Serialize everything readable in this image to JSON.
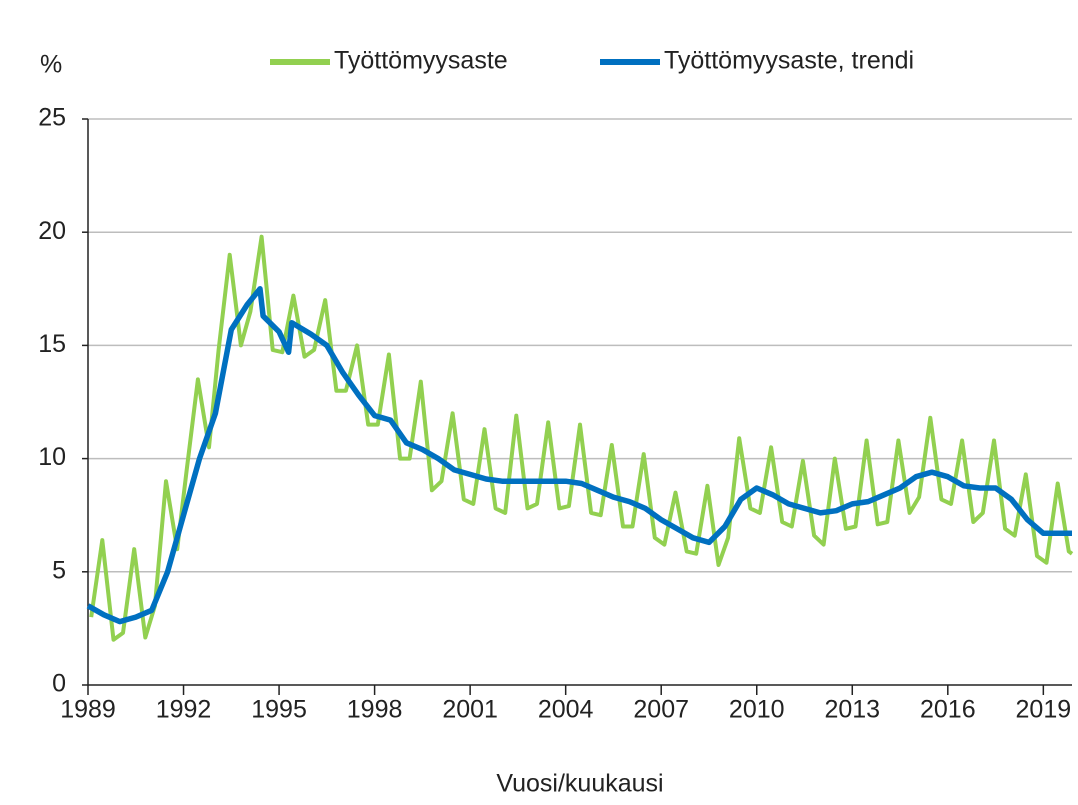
{
  "chart_data": {
    "type": "line",
    "y_unit": "%",
    "xlabel": "Vuosi/kuukausi",
    "xlim": [
      1989,
      2019.9
    ],
    "xticks": [
      1989,
      1992,
      1995,
      1998,
      2001,
      2004,
      2007,
      2010,
      2013,
      2016,
      2019
    ],
    "ylim": [
      0,
      25
    ],
    "yticks": [
      0,
      5,
      10,
      15,
      20,
      25
    ],
    "grid": true,
    "legend": "top",
    "series": [
      {
        "name": "Työttömyysaste",
        "color": "#92d050",
        "x": [
          1989.1,
          1989.45,
          1989.8,
          1990.1,
          1990.45,
          1990.8,
          1991.1,
          1991.45,
          1991.8,
          1992.1,
          1992.45,
          1992.8,
          1993.1,
          1993.45,
          1993.8,
          1994.1,
          1994.45,
          1994.8,
          1995.1,
          1995.45,
          1995.8,
          1996.1,
          1996.45,
          1996.8,
          1997.1,
          1997.45,
          1997.8,
          1998.1,
          1998.45,
          1998.8,
          1999.1,
          1999.45,
          1999.8,
          2000.1,
          2000.45,
          2000.8,
          2001.1,
          2001.45,
          2001.8,
          2002.1,
          2002.45,
          2002.8,
          2003.1,
          2003.45,
          2003.8,
          2004.1,
          2004.45,
          2004.8,
          2005.1,
          2005.45,
          2005.8,
          2006.1,
          2006.45,
          2006.8,
          2007.1,
          2007.45,
          2007.8,
          2008.1,
          2008.45,
          2008.8,
          2009.1,
          2009.45,
          2009.8,
          2010.1,
          2010.45,
          2010.8,
          2011.1,
          2011.45,
          2011.8,
          2012.1,
          2012.45,
          2012.8,
          2013.1,
          2013.45,
          2013.8,
          2014.1,
          2014.45,
          2014.8,
          2015.1,
          2015.45,
          2015.8,
          2016.1,
          2016.45,
          2016.8,
          2017.1,
          2017.45,
          2017.8,
          2018.1,
          2018.45,
          2018.8,
          2019.1,
          2019.45,
          2019.8,
          2019.9
        ],
        "values": [
          3.0,
          6.4,
          2.0,
          2.3,
          6.0,
          2.1,
          3.5,
          9.0,
          6.0,
          9.5,
          13.5,
          10.5,
          14.8,
          19.0,
          15.0,
          16.5,
          19.8,
          14.8,
          14.7,
          17.2,
          14.5,
          14.8,
          17.0,
          13.0,
          13.0,
          15.0,
          11.5,
          11.5,
          14.6,
          10.0,
          10.0,
          13.4,
          8.6,
          9.0,
          12.0,
          8.2,
          8.0,
          11.3,
          7.8,
          7.6,
          11.9,
          7.8,
          8.0,
          11.6,
          7.8,
          7.9,
          11.5,
          7.6,
          7.5,
          10.6,
          7.0,
          7.0,
          10.2,
          6.5,
          6.2,
          8.5,
          5.9,
          5.8,
          8.8,
          5.3,
          6.5,
          10.9,
          7.8,
          7.6,
          10.5,
          7.2,
          7.0,
          9.9,
          6.6,
          6.2,
          10.0,
          6.9,
          7.0,
          10.8,
          7.1,
          7.2,
          10.8,
          7.6,
          8.3,
          11.8,
          8.2,
          8.0,
          10.8,
          7.2,
          7.6,
          10.8,
          6.9,
          6.6,
          9.3,
          5.7,
          5.4,
          8.9,
          5.9,
          5.8
        ]
      },
      {
        "name": "Työttömyysaste, trendi",
        "color": "#0070c0",
        "x": [
          1989.0,
          1989.5,
          1990.0,
          1990.5,
          1991.0,
          1991.5,
          1992.0,
          1992.5,
          1993.0,
          1993.5,
          1994.0,
          1994.4,
          1994.5,
          1995.0,
          1995.3,
          1995.4,
          1996.0,
          1996.5,
          1997.0,
          1997.5,
          1998.0,
          1998.5,
          1999.0,
          1999.5,
          2000.0,
          2000.5,
          2001.0,
          2001.5,
          2002.0,
          2002.5,
          2003.0,
          2003.5,
          2004.0,
          2004.5,
          2005.0,
          2005.5,
          2006.0,
          2006.5,
          2007.0,
          2007.5,
          2008.0,
          2008.5,
          2009.0,
          2009.5,
          2010.0,
          2010.5,
          2011.0,
          2011.5,
          2012.0,
          2012.5,
          2013.0,
          2013.5,
          2014.0,
          2014.5,
          2015.0,
          2015.5,
          2016.0,
          2016.5,
          2017.0,
          2017.5,
          2018.0,
          2018.5,
          2019.0,
          2019.5,
          2019.9
        ],
        "values": [
          3.5,
          3.1,
          2.8,
          3.0,
          3.3,
          5.0,
          7.5,
          10.0,
          12.0,
          15.7,
          16.8,
          17.5,
          16.3,
          15.6,
          14.7,
          16.0,
          15.5,
          15.0,
          13.8,
          12.8,
          11.9,
          11.7,
          10.7,
          10.4,
          10.0,
          9.5,
          9.3,
          9.1,
          9.0,
          9.0,
          9.0,
          9.0,
          9.0,
          8.9,
          8.6,
          8.3,
          8.1,
          7.8,
          7.3,
          6.9,
          6.5,
          6.3,
          7.0,
          8.2,
          8.7,
          8.4,
          8.0,
          7.8,
          7.6,
          7.7,
          8.0,
          8.1,
          8.4,
          8.7,
          9.2,
          9.4,
          9.2,
          8.8,
          8.7,
          8.7,
          8.2,
          7.3,
          6.7,
          6.7,
          6.7
        ]
      }
    ]
  }
}
